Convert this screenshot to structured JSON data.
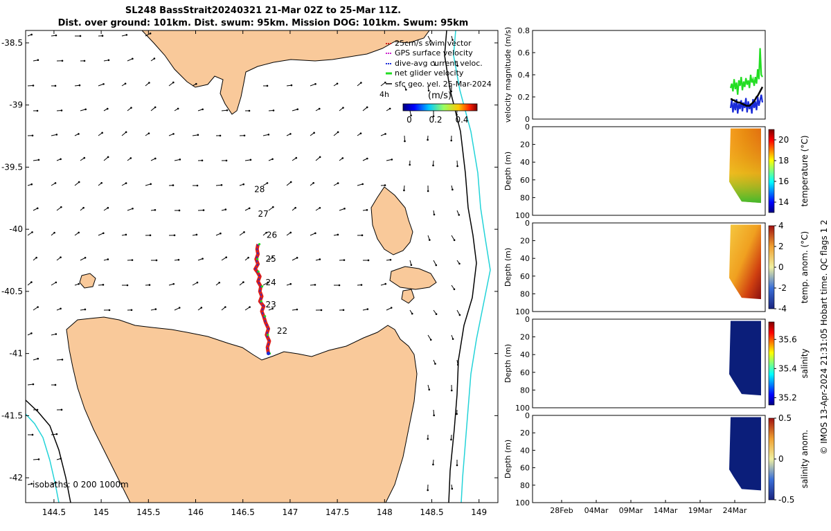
{
  "header": {
    "title_line1": "SL248 BassStrait20240321 21-Mar 02Z to 25-Mar 11Z.",
    "title_line2": "Dist. over ground: 101km. Dist. swum: 95km. Mission DOG: 101km. Swum: 95km"
  },
  "copyright": "© IMOS 13-Apr-2024 21:31:05 Hobart time. QC flags 1  2",
  "colors": {
    "land": "#f9c99a",
    "isobath_200": "#000000",
    "isobath_1000": "#22d3d8",
    "track": "#e0201a",
    "dive_avg": "#1a2bd8",
    "net": "#22dd22",
    "swim": "#d0201a",
    "gps": "#cc22cc"
  },
  "chart_data": [
    {
      "type": "map",
      "xlim": [
        144.2,
        149.2
      ],
      "ylim": [
        -42.2,
        -38.4
      ],
      "x_ticks": [
        "144.5",
        "145",
        "145.5",
        "146",
        "146.5",
        "147",
        "147.5",
        "148",
        "148.5",
        "149"
      ],
      "y_ticks": [
        "-38.5",
        "-39",
        "-39.5",
        "-40",
        "-40.5",
        "-41",
        "-41.5",
        "-42"
      ],
      "legend": [
        {
          "label": "25cm/s swim vector",
          "color": "#d0201a"
        },
        {
          "label": "GPS surface velocity",
          "color": "#cc22cc"
        },
        {
          "label": "dive-avg current veloc.",
          "color": "#1a2bd8"
        },
        {
          "label": "net glider velocity",
          "color": "#22dd22"
        },
        {
          "label": "sfc geo. vel. 25-Mar-2024",
          "color": "#000000"
        }
      ],
      "legend_extra": "4h",
      "colorbar": {
        "label": "(m/s)",
        "ticks": [
          "0",
          "0.2",
          "0.4"
        ],
        "range": [
          0,
          0.5
        ]
      },
      "isobaths_label": "isobaths: 0   200  1000m",
      "day_labels": [
        {
          "text": "28",
          "lon": 146.62,
          "lat": -39.7
        },
        {
          "text": "27",
          "lon": 146.66,
          "lat": -39.9
        },
        {
          "text": "26",
          "lon": 146.75,
          "lat": -40.07
        },
        {
          "text": "25",
          "lon": 146.74,
          "lat": -40.26
        },
        {
          "text": "24",
          "lon": 146.74,
          "lat": -40.45
        },
        {
          "text": "23",
          "lon": 146.74,
          "lat": -40.63
        },
        {
          "text": "22",
          "lon": 146.86,
          "lat": -40.84
        }
      ],
      "track": [
        [
          146.77,
          -41.0
        ],
        [
          146.76,
          -40.95
        ],
        [
          146.78,
          -40.9
        ],
        [
          146.75,
          -40.85
        ],
        [
          146.77,
          -40.8
        ],
        [
          146.74,
          -40.75
        ],
        [
          146.72,
          -40.7
        ],
        [
          146.7,
          -40.66
        ],
        [
          146.72,
          -40.62
        ],
        [
          146.68,
          -40.58
        ],
        [
          146.7,
          -40.54
        ],
        [
          146.68,
          -40.5
        ],
        [
          146.69,
          -40.46
        ],
        [
          146.66,
          -40.42
        ],
        [
          146.68,
          -40.38
        ],
        [
          146.65,
          -40.34
        ],
        [
          146.63,
          -40.32
        ],
        [
          146.66,
          -40.28
        ],
        [
          146.64,
          -40.24
        ],
        [
          146.66,
          -40.2
        ],
        [
          146.65,
          -40.16
        ],
        [
          146.66,
          -40.12
        ]
      ]
    },
    {
      "type": "line",
      "ylabel": "velocity magnitude (m/s)",
      "ylim": [
        0,
        0.8
      ],
      "y_ticks": [
        "0",
        "0.2",
        "0.4",
        "0.6",
        "0.8"
      ],
      "series": [
        {
          "color": "#22dd22",
          "values": [
            0.28,
            0.32,
            0.25,
            0.36,
            0.27,
            0.33,
            0.22,
            0.35,
            0.3,
            0.38,
            0.26,
            0.34,
            0.29,
            0.37,
            0.31,
            0.35,
            0.28,
            0.4,
            0.33,
            0.36,
            0.3,
            0.38,
            0.32,
            0.45,
            0.36,
            0.64,
            0.4,
            0.38
          ]
        },
        {
          "color": "#1a2bd8",
          "values": [
            0.1,
            0.17,
            0.06,
            0.15,
            0.08,
            0.18,
            0.05,
            0.14,
            0.09,
            0.17,
            0.07,
            0.15,
            0.1,
            0.19,
            0.06,
            0.16,
            0.09,
            0.14,
            0.05,
            0.18,
            0.1,
            0.16,
            0.08,
            0.2,
            0.12,
            0.17,
            0.22,
            0.15
          ]
        },
        {
          "color": "#000000",
          "values": [
            0.18,
            0.18,
            0.17,
            0.17,
            0.16,
            0.16,
            0.15,
            0.15,
            0.15,
            0.14,
            0.14,
            0.13,
            0.13,
            0.12,
            0.12,
            0.12,
            0.12,
            0.13,
            0.14,
            0.15,
            0.16,
            0.18,
            0.2,
            0.21,
            0.23,
            0.25,
            0.27,
            0.29
          ]
        }
      ]
    },
    {
      "type": "heatmap",
      "ylabel": "Depth (m)",
      "clabel": "temperature (°C)",
      "ylim": [
        100,
        0
      ],
      "y_ticks": [
        "0",
        "20",
        "40",
        "60",
        "80",
        "100"
      ],
      "c_ticks": [
        "14",
        "16",
        "18",
        "20"
      ],
      "colormap": "jet"
    },
    {
      "type": "heatmap",
      "ylabel": "Depth (m)",
      "clabel": "temp. anom. (°C)",
      "ylim": [
        100,
        0
      ],
      "y_ticks": [
        "0",
        "20",
        "40",
        "60",
        "80",
        "100"
      ],
      "c_ticks": [
        "-4",
        "-2",
        "0",
        "2",
        "4"
      ],
      "colormap": "diverging"
    },
    {
      "type": "heatmap",
      "ylabel": "Depth (m)",
      "clabel": "salinity",
      "ylim": [
        100,
        0
      ],
      "y_ticks": [
        "0",
        "20",
        "40",
        "60",
        "80",
        "100"
      ],
      "c_ticks": [
        "35.2",
        "35.4",
        "35.6"
      ],
      "colormap": "jet"
    },
    {
      "type": "heatmap",
      "ylabel": "Depth (m)",
      "clabel": "salinity anom.",
      "ylim": [
        100,
        0
      ],
      "y_ticks": [
        "0",
        "20",
        "40",
        "60",
        "80",
        "100"
      ],
      "c_ticks": [
        "-0.5",
        "0",
        "0.5"
      ],
      "colormap": "diverging",
      "x_ticks": [
        "28Feb",
        "04Mar",
        "09Mar",
        "14Mar",
        "19Mar",
        "24Mar"
      ]
    }
  ]
}
